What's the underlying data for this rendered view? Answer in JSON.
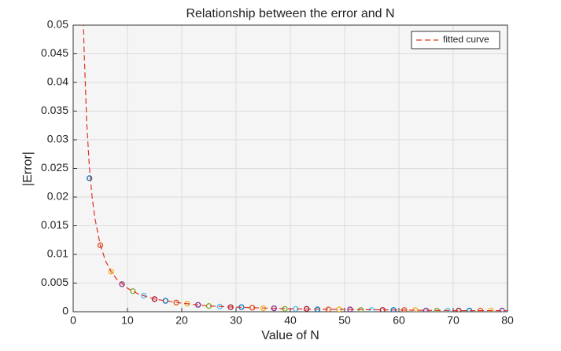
{
  "chart_data": {
    "type": "scatter",
    "title": "Relationship between the error and N",
    "x_label": "Value of N",
    "y_label": "|Error|",
    "xlim": [
      0,
      80
    ],
    "ylim": [
      0,
      0.05
    ],
    "xticks": [
      0,
      10,
      20,
      30,
      40,
      50,
      60,
      70,
      80
    ],
    "yticks": [
      0,
      0.005,
      0.01,
      0.015,
      0.02,
      0.025,
      0.03,
      0.035,
      0.04,
      0.045,
      0.05
    ],
    "grid": true,
    "legend": "upper right",
    "series": [
      {
        "type": "scatter",
        "colors": [
          "#0072bd",
          "#d95319",
          "#edb120",
          "#7e2f8e",
          "#77ac30",
          "#4dbeee",
          "#a2142f"
        ],
        "x": [
          3,
          5,
          7,
          9,
          11,
          13,
          15,
          17,
          19,
          21,
          23,
          25,
          27,
          29,
          31,
          33,
          35,
          37,
          39,
          41,
          43,
          45,
          47,
          49,
          51,
          53,
          55,
          57,
          59,
          61,
          63,
          65,
          67,
          69,
          71,
          73,
          75,
          77,
          79
        ],
        "values": [
          0.0233,
          0.0116,
          0.007,
          0.0048,
          0.0036,
          0.0028,
          0.0022,
          0.0019,
          0.0016,
          0.0014,
          0.0012,
          0.001,
          0.0009,
          0.0008,
          0.0008,
          0.0007,
          0.0006,
          0.0006,
          0.0005,
          0.0005,
          0.0005,
          0.0004,
          0.0004,
          0.0004,
          0.0004,
          0.0003,
          0.0003,
          0.0003,
          0.0003,
          0.0003,
          0.0003,
          0.0002,
          0.0002,
          0.0002,
          0.0002,
          0.0002,
          0.0002,
          0.0002,
          0.0002
        ]
      },
      {
        "type": "line",
        "name": "fitted curve",
        "color": "#e0301e",
        "x": [
          1.8,
          2,
          2.5,
          3,
          3.5,
          4,
          5,
          6,
          7,
          8,
          10,
          12,
          15,
          20,
          25,
          30,
          40,
          50,
          60,
          70,
          80
        ],
        "values": [
          0.0538,
          0.046,
          0.0329,
          0.025,
          0.0199,
          0.0163,
          0.0116,
          0.0088,
          0.007,
          0.0057,
          0.0041,
          0.0031,
          0.0022,
          0.0015,
          0.001,
          0.0008,
          0.0005,
          0.0004,
          0.0003,
          0.0002,
          0.0002
        ]
      }
    ]
  }
}
